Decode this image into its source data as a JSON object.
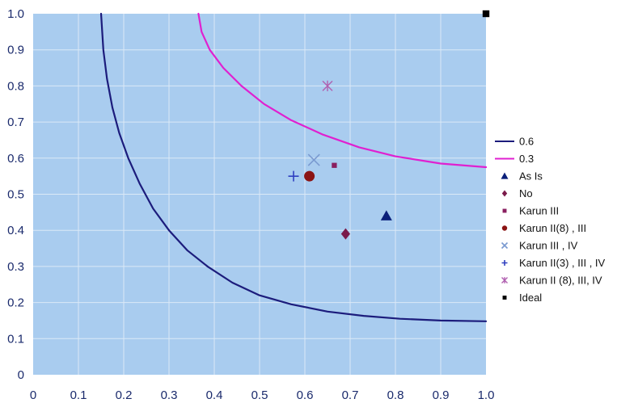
{
  "colors": {
    "plot_bg": "#a9ccef",
    "grid": "#dbe9f7",
    "axis_text": "#1a2a6c"
  },
  "chart_data": {
    "type": "scatter",
    "title": "",
    "xlabel": "",
    "ylabel": "",
    "xlim": [
      0,
      1.0
    ],
    "ylim": [
      0,
      1.0
    ],
    "grid": true,
    "legend_position": "right",
    "x_ticks": [
      {
        "value": 0,
        "label": "0"
      },
      {
        "value": 0.1,
        "label": "0.1"
      },
      {
        "value": 0.2,
        "label": "0.2"
      },
      {
        "value": 0.3,
        "label": "0.3"
      },
      {
        "value": 0.4,
        "label": "0.4"
      },
      {
        "value": 0.5,
        "label": "0.5"
      },
      {
        "value": 0.6,
        "label": "0.6"
      },
      {
        "value": 0.7,
        "label": "0.7"
      },
      {
        "value": 0.8,
        "label": "0.8"
      },
      {
        "value": 0.9,
        "label": "0.9"
      },
      {
        "value": 1.0,
        "label": "1.0"
      }
    ],
    "y_ticks": [
      {
        "value": 0,
        "label": "0"
      },
      {
        "value": 0.1,
        "label": "0.1"
      },
      {
        "value": 0.2,
        "label": "0.2"
      },
      {
        "value": 0.3,
        "label": "0.3"
      },
      {
        "value": 0.4,
        "label": "0.4"
      },
      {
        "value": 0.5,
        "label": "0.5"
      },
      {
        "value": 0.6,
        "label": "0.6"
      },
      {
        "value": 0.7,
        "label": "0.7"
      },
      {
        "value": 0.8,
        "label": "0.8"
      },
      {
        "value": 0.9,
        "label": "0.9"
      },
      {
        "value": 1.0,
        "label": "1.0"
      }
    ],
    "curves": [
      {
        "name": "0.6",
        "color": "#1c1c7c",
        "points": [
          [
            0.15,
            1.0
          ],
          [
            0.155,
            0.9
          ],
          [
            0.163,
            0.82
          ],
          [
            0.175,
            0.74
          ],
          [
            0.19,
            0.67
          ],
          [
            0.21,
            0.6
          ],
          [
            0.235,
            0.53
          ],
          [
            0.265,
            0.46
          ],
          [
            0.3,
            0.4
          ],
          [
            0.34,
            0.345
          ],
          [
            0.385,
            0.3
          ],
          [
            0.44,
            0.255
          ],
          [
            0.5,
            0.22
          ],
          [
            0.57,
            0.195
          ],
          [
            0.65,
            0.175
          ],
          [
            0.73,
            0.163
          ],
          [
            0.81,
            0.155
          ],
          [
            0.9,
            0.15
          ],
          [
            1.0,
            0.148
          ]
        ]
      },
      {
        "name": "0.3",
        "color": "#e020d0",
        "points": [
          [
            0.365,
            1.0
          ],
          [
            0.372,
            0.95
          ],
          [
            0.39,
            0.9
          ],
          [
            0.42,
            0.85
          ],
          [
            0.46,
            0.8
          ],
          [
            0.51,
            0.75
          ],
          [
            0.57,
            0.705
          ],
          [
            0.64,
            0.665
          ],
          [
            0.72,
            0.63
          ],
          [
            0.8,
            0.605
          ],
          [
            0.9,
            0.585
          ],
          [
            1.0,
            0.575
          ]
        ]
      }
    ],
    "points": [
      {
        "name": "As Is",
        "x": 0.78,
        "y": 0.44,
        "marker": "triangle",
        "color": "#0a1f7a"
      },
      {
        "name": "No",
        "x": 0.69,
        "y": 0.39,
        "marker": "diamond",
        "color": "#7a1a4a"
      },
      {
        "name": "Karun III",
        "x": 0.665,
        "y": 0.58,
        "marker": "square",
        "color": "#8a2060"
      },
      {
        "name": "Karun II(8) , III",
        "x": 0.61,
        "y": 0.55,
        "marker": "circle",
        "color": "#8b1414"
      },
      {
        "name": "Karun III , IV",
        "x": 0.62,
        "y": 0.595,
        "marker": "x",
        "color": "#7a9ad0"
      },
      {
        "name": "Karun II(3) , III , IV",
        "x": 0.575,
        "y": 0.55,
        "marker": "plus",
        "color": "#3040c0"
      },
      {
        "name": "Karun II (8), III, IV",
        "x": 0.65,
        "y": 0.8,
        "marker": "star",
        "color": "#b060b0"
      },
      {
        "name": "Ideal",
        "x": 1.0,
        "y": 1.0,
        "marker": "square",
        "color": "#000000"
      }
    ],
    "legend": [
      {
        "label": "0.6",
        "marker": "line",
        "color": "#1c1c7c"
      },
      {
        "label": "0.3",
        "marker": "line",
        "color": "#e020d0"
      },
      {
        "label": "As Is",
        "marker": "triangle",
        "color": "#0a1f7a"
      },
      {
        "label": "No",
        "marker": "diamond",
        "color": "#7a1a4a"
      },
      {
        "label": "Karun III",
        "marker": "square",
        "color": "#8a2060"
      },
      {
        "label": "Karun II(8) , III",
        "marker": "circle",
        "color": "#8b1414"
      },
      {
        "label": "Karun III , IV",
        "marker": "x",
        "color": "#7a9ad0"
      },
      {
        "label": "Karun II(3) , III , IV",
        "marker": "plus",
        "color": "#3040c0"
      },
      {
        "label": "Karun II (8), III, IV",
        "marker": "star",
        "color": "#b060b0"
      },
      {
        "label": "Ideal",
        "marker": "square",
        "color": "#000000"
      }
    ]
  }
}
